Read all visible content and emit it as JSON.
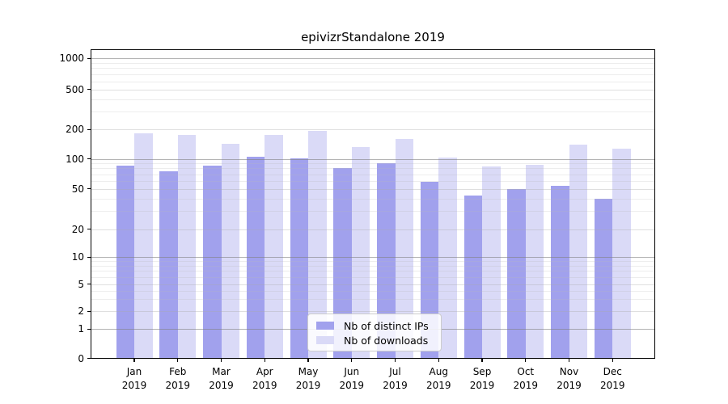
{
  "title": "epivizrStandalone 2019",
  "y_axis": {
    "ticks": [
      "0",
      "1",
      "2",
      "5",
      "10",
      "20",
      "50",
      "100",
      "200",
      "500",
      "1000"
    ]
  },
  "x_axis": {
    "labels": [
      {
        "month": "Jan",
        "year": "2019"
      },
      {
        "month": "Feb",
        "year": "2019"
      },
      {
        "month": "Mar",
        "year": "2019"
      },
      {
        "month": "Apr",
        "year": "2019"
      },
      {
        "month": "May",
        "year": "2019"
      },
      {
        "month": "Jun",
        "year": "2019"
      },
      {
        "month": "Jul",
        "year": "2019"
      },
      {
        "month": "Aug",
        "year": "2019"
      },
      {
        "month": "Sep",
        "year": "2019"
      },
      {
        "month": "Oct",
        "year": "2019"
      },
      {
        "month": "Nov",
        "year": "2019"
      },
      {
        "month": "Dec",
        "year": "2019"
      }
    ]
  },
  "legend": [
    {
      "label": "Nb of distinct IPs",
      "color": "#a1a1ed"
    },
    {
      "label": "Nb of downloads",
      "color": "#dadaf7"
    }
  ],
  "chart_data": {
    "type": "bar",
    "title": "epivizrStandalone 2019",
    "categories": [
      "Jan 2019",
      "Feb 2019",
      "Mar 2019",
      "Apr 2019",
      "May 2019",
      "Jun 2019",
      "Jul 2019",
      "Aug 2019",
      "Sep 2019",
      "Oct 2019",
      "Nov 2019",
      "Dec 2019"
    ],
    "series": [
      {
        "name": "Nb of distinct IPs",
        "color": "#a1a1ed",
        "values": [
          85,
          75,
          85,
          104,
          101,
          80,
          91,
          59,
          43,
          50,
          53,
          40
        ]
      },
      {
        "name": "Nb of downloads",
        "color": "#dadaf7",
        "values": [
          181,
          176,
          141,
          176,
          193,
          132,
          159,
          103,
          84,
          87,
          140,
          126
        ]
      }
    ],
    "xlabel": "",
    "ylabel": "",
    "yscale": "log-like (0,1,2,5,10,20,50,100,200,500,1000)",
    "y_ticks": [
      0,
      1,
      2,
      5,
      10,
      20,
      50,
      100,
      200,
      500,
      1000
    ],
    "ylim": [
      0,
      1250
    ],
    "grid": true,
    "legend_position": "lower center"
  }
}
